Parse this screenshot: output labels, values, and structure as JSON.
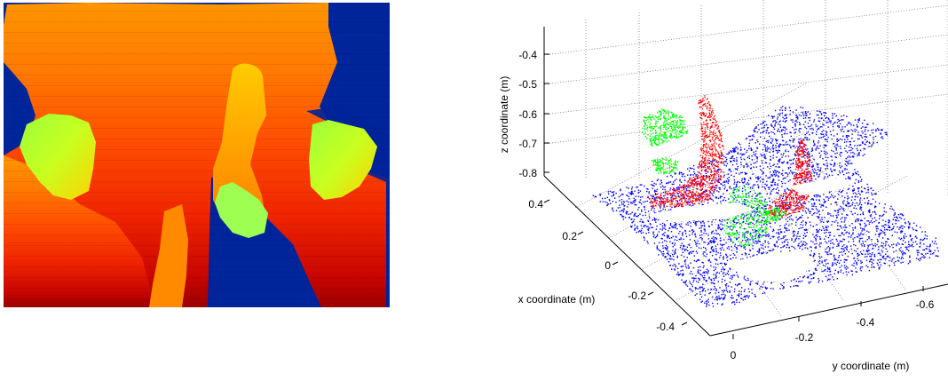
{
  "chart_data": [
    {
      "type": "heatmap",
      "title": "",
      "colormap": "jet",
      "colors": {
        "background": "#00249a",
        "near": "#9a0000",
        "mid": "#ff4a00",
        "far": "#ff9000",
        "highlight": "#7bff5e"
      }
    },
    {
      "type": "scatter",
      "title": "",
      "projection": "3d",
      "grid": true,
      "xlabel": "x coordinate (m)",
      "ylabel": "y coordinate (m)",
      "zlabel": "z coordinate (m)",
      "x_ticks": [
        "0.4",
        "0.2",
        "0",
        "-0.2",
        "-0.4"
      ],
      "y_ticks": [
        "0",
        "-0.2",
        "-0.4",
        "-0.6"
      ],
      "z_ticks": [
        "-0.4",
        "-0.5",
        "-0.6",
        "-0.7",
        "-0.8"
      ],
      "xlim": [
        -0.5,
        0.5
      ],
      "ylim": [
        -0.7,
        0.05
      ],
      "zlim": [
        -0.85,
        -0.35
      ],
      "series": [
        {
          "color": "#0000ff",
          "region": "floor plane"
        },
        {
          "color": "#ff0000",
          "region": "arms"
        },
        {
          "color": "#00ff00",
          "region": "hands"
        }
      ]
    }
  ]
}
